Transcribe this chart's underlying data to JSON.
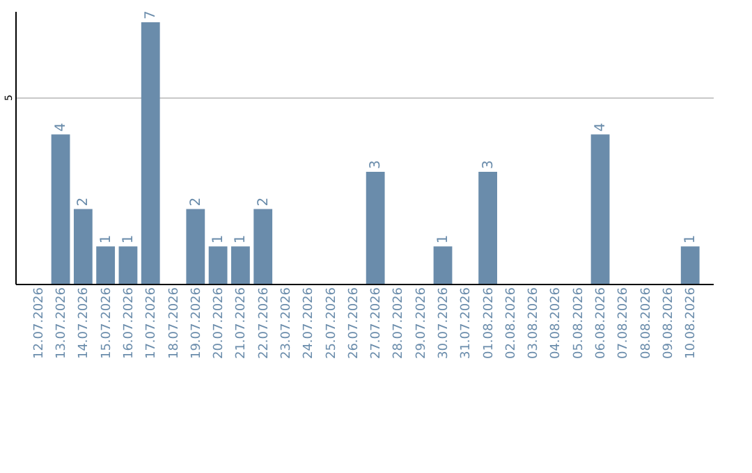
{
  "chart_data": {
    "type": "bar",
    "categories": [
      "12.07.2026",
      "13.07.2026",
      "14.07.2026",
      "15.07.2026",
      "16.07.2026",
      "17.07.2026",
      "18.07.2026",
      "19.07.2026",
      "20.07.2026",
      "21.07.2026",
      "22.07.2026",
      "23.07.2026",
      "24.07.2026",
      "25.07.2026",
      "26.07.2026",
      "27.07.2026",
      "28.07.2026",
      "29.07.2026",
      "30.07.2026",
      "31.07.2026",
      "01.08.2026",
      "02.08.2026",
      "03.08.2026",
      "04.08.2026",
      "05.08.2026",
      "06.08.2026",
      "07.08.2026",
      "08.08.2026",
      "09.08.2026",
      "10.08.2026"
    ],
    "values": [
      0,
      4,
      2,
      1,
      1,
      7,
      0,
      2,
      1,
      1,
      2,
      0,
      0,
      0,
      0,
      3,
      0,
      0,
      1,
      0,
      3,
      0,
      0,
      0,
      0,
      4,
      0,
      0,
      0,
      1
    ],
    "value_labels": [
      null,
      "4",
      "2",
      "1",
      "1",
      "7",
      null,
      "2",
      "1",
      "1",
      "2",
      null,
      null,
      null,
      null,
      "3",
      null,
      null,
      "1",
      null,
      "3",
      null,
      null,
      null,
      null,
      "4",
      null,
      null,
      null,
      "1"
    ],
    "color": "#6a8cab",
    "ylim": [
      0,
      7.3
    ],
    "yticks": [
      5
    ],
    "grid": "y"
  }
}
